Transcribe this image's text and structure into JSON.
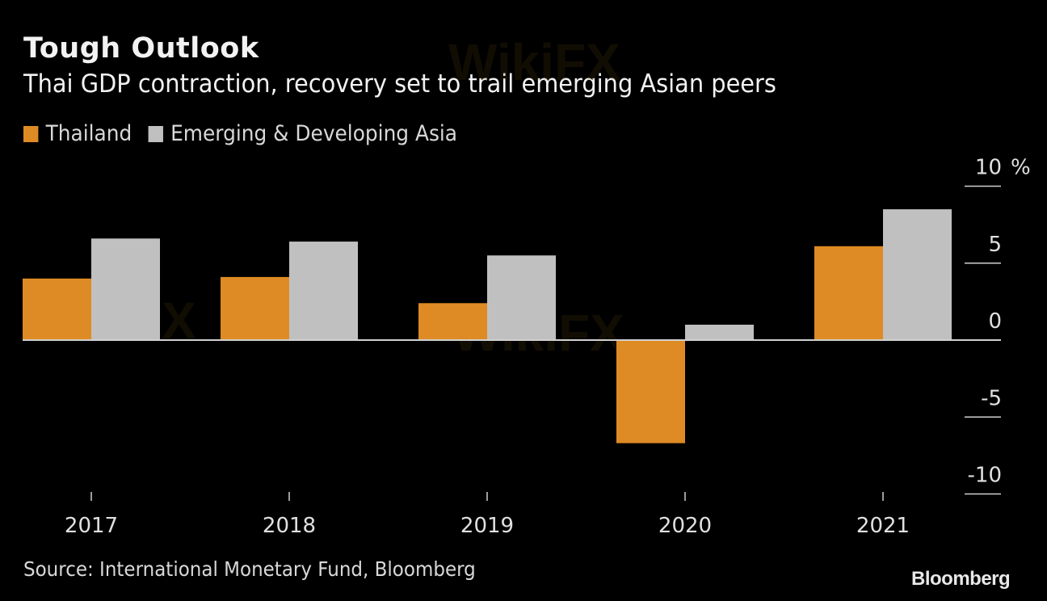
{
  "header": {
    "title": "Tough Outlook",
    "subtitle": "Thai GDP contraction, recovery set to trail emerging Asian peers"
  },
  "footer": {
    "source": "Source: International Monetary Fund, Bloomberg",
    "brand": "Bloomberg",
    "watermark": "WikiFX"
  },
  "colors": {
    "thailand": "#de8b25",
    "asia": "#c0c0c0",
    "background": "#000000",
    "axis": "#d0d0d0"
  },
  "chart_data": {
    "type": "bar",
    "title": "Tough Outlook",
    "subtitle": "Thai GDP contraction, recovery set to trail emerging Asian peers",
    "xlabel": "",
    "ylabel": "%",
    "y_unit": "%",
    "categories": [
      "2017",
      "2018",
      "2019",
      "2020",
      "2021"
    ],
    "series": [
      {
        "name": "Thailand",
        "color": "#de8b25",
        "values": [
          4.0,
          4.1,
          2.4,
          -6.7,
          6.1
        ]
      },
      {
        "name": "Emerging & Developing Asia",
        "color": "#c0c0c0",
        "values": [
          6.6,
          6.4,
          5.5,
          1.0,
          8.5
        ]
      }
    ],
    "ylim": [
      -10,
      10
    ],
    "yticks": [
      10,
      5,
      0,
      -5,
      -10
    ],
    "ytick_labels": [
      "10",
      "5",
      "0",
      "-5",
      "-10"
    ],
    "y_axis_position": "right",
    "legend": "top-left",
    "grid": false
  }
}
